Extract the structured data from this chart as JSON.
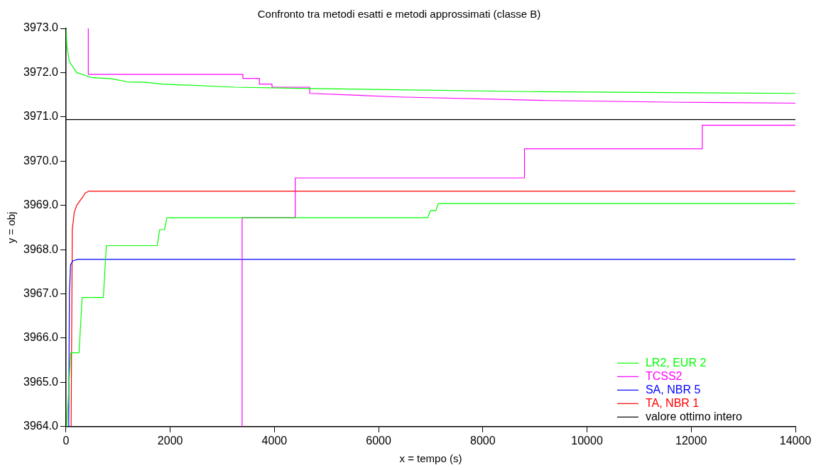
{
  "chart_data": {
    "type": "line",
    "title": "Confronto tra metodi esatti e metodi approssimati (classe B)",
    "xlabel": "x = tempo (s)",
    "ylabel": "y = obj",
    "xlim": [
      0,
      14000
    ],
    "xticks": [
      0,
      2000,
      4000,
      6000,
      8000,
      10000,
      12000,
      14000
    ],
    "ylim": [
      3964,
      3973
    ],
    "yticks": [
      {
        "value": 3964,
        "label": "3964.0"
      },
      {
        "value": 3965,
        "label": "3965.0"
      },
      {
        "value": 3966,
        "label": "3966.0"
      },
      {
        "value": 3967,
        "label": "3967.0"
      },
      {
        "value": 3968,
        "label": "3968.0"
      },
      {
        "value": 3969,
        "label": "3969.0"
      },
      {
        "value": 3970,
        "label": "3970.0"
      },
      {
        "value": 3971,
        "label": "3971.0"
      },
      {
        "value": 3972,
        "label": "3972.0"
      },
      {
        "value": 3973,
        "label": "3973.0"
      }
    ],
    "grid": false,
    "legend": "bottom right",
    "series": [
      {
        "name": "LR2, EUR 2",
        "color": "#00ff00",
        "x": [
          0,
          18,
          65,
          205,
          485,
          880,
          1183,
          1530,
          1858,
          3255,
          4653,
          8887,
          14000
        ],
        "values": [
          3973,
          3972.6,
          3972.25,
          3972.0,
          3971.89,
          3971.86,
          3971.79,
          3971.78,
          3971.74,
          3971.67,
          3971.64,
          3971.57,
          3971.53
        ]
      },
      {
        "color": "#00ff00",
        "x": [
          15,
          90,
          250,
          310,
          717,
          774,
          1750,
          1797,
          1890,
          1938,
          6944,
          6991,
          7098,
          7145,
          14000
        ],
        "values": [
          3964,
          3965.67,
          3965.67,
          3966.92,
          3966.92,
          3968.09,
          3968.09,
          3968.45,
          3968.45,
          3968.72,
          3968.72,
          3968.88,
          3968.88,
          3969.04,
          3969.04
        ]
      },
      {
        "name": "TCSS2",
        "color": "#ff00ff",
        "x": [
          428,
          428,
          3395,
          3395,
          3712,
          3712,
          3954,
          3954,
          4677,
          4677,
          6386,
          9208,
          11779,
          14000
        ],
        "values": [
          3973,
          3971.96,
          3971.96,
          3971.87,
          3971.87,
          3971.74,
          3971.74,
          3971.67,
          3971.67,
          3971.53,
          3971.45,
          3971.37,
          3971.33,
          3971.31
        ]
      },
      {
        "color": "#ff00ff",
        "x": [
          3380,
          3380,
          4400,
          4400,
          8800,
          8800,
          12212,
          12212,
          14000
        ],
        "values": [
          3964,
          3968.72,
          3968.72,
          3969.62,
          3969.62,
          3970.28,
          3970.28,
          3970.81,
          3970.81
        ]
      },
      {
        "name": "SA, NBR 5",
        "color": "#0000ff",
        "x": [
          52,
          65,
          88,
          135,
          228,
          14000
        ],
        "values": [
          3964,
          3967.01,
          3967.66,
          3967.75,
          3967.78,
          3967.78
        ]
      },
      {
        "name": "TA, NBR 1",
        "color": "#ff0000",
        "x": [
          98,
          121,
          158,
          205,
          321,
          368,
          437,
          14000
        ],
        "values": [
          3964,
          3968.46,
          3968.84,
          3969.0,
          3969.19,
          3969.28,
          3969.32,
          3969.32
        ]
      },
      {
        "name": "valore ottimo intero",
        "color": "#000000",
        "x": [
          0,
          14000
        ],
        "values": [
          3970.94,
          3970.94
        ]
      }
    ]
  }
}
